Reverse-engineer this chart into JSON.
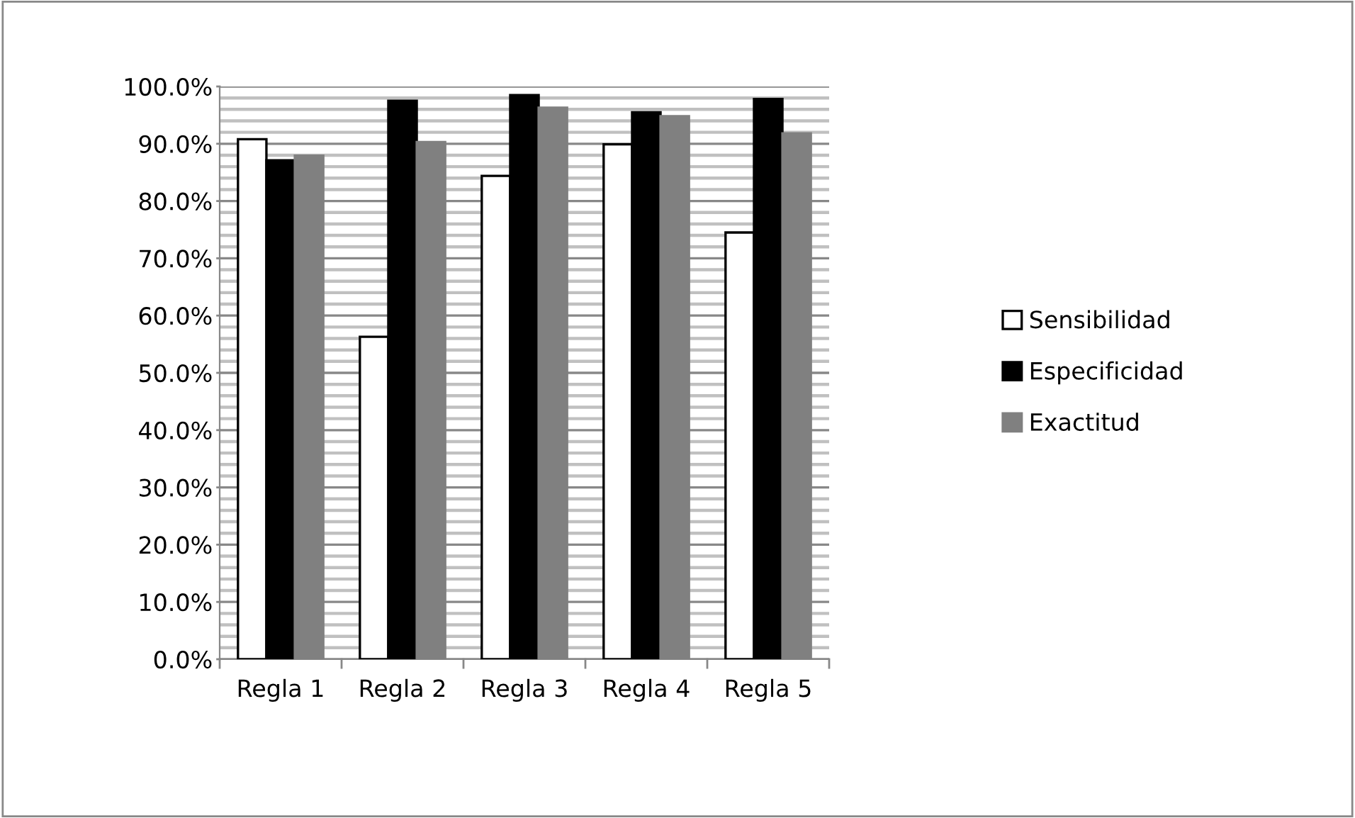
{
  "chart_data": {
    "type": "bar",
    "categories": [
      "Regla 1",
      "Regla 2",
      "Regla 3",
      "Regla 4",
      "Regla 5"
    ],
    "series": [
      {
        "name": "Sensibilidad",
        "color": "#ffffff",
        "values": [
          90.8,
          56.3,
          84.4,
          89.9,
          74.5
        ]
      },
      {
        "name": "Especificidad",
        "color": "#000000",
        "values": [
          87.1,
          97.5,
          98.5,
          95.5,
          97.8
        ]
      },
      {
        "name": "Exactitud",
        "color": "#808080",
        "values": [
          87.9,
          90.3,
          96.3,
          94.8,
          91.8
        ]
      }
    ],
    "ylim": [
      0,
      100
    ],
    "yticks": [
      {
        "value": 0,
        "label": "0.0%"
      },
      {
        "value": 2,
        "label": null
      },
      {
        "value": 4,
        "label": null
      },
      {
        "value": 6,
        "label": null
      },
      {
        "value": 8,
        "label": null
      },
      {
        "value": 10,
        "label": "10.0%"
      },
      {
        "value": 12,
        "label": null
      },
      {
        "value": 14,
        "label": null
      },
      {
        "value": 16,
        "label": null
      },
      {
        "value": 18,
        "label": null
      },
      {
        "value": 20,
        "label": "20.0%"
      },
      {
        "value": 22,
        "label": null
      },
      {
        "value": 24,
        "label": null
      },
      {
        "value": 26,
        "label": null
      },
      {
        "value": 28,
        "label": null
      },
      {
        "value": 30,
        "label": "30.0%"
      },
      {
        "value": 32,
        "label": null
      },
      {
        "value": 34,
        "label": null
      },
      {
        "value": 36,
        "label": null
      },
      {
        "value": 38,
        "label": null
      },
      {
        "value": 40,
        "label": "40.0%"
      },
      {
        "value": 42,
        "label": null
      },
      {
        "value": 44,
        "label": null
      },
      {
        "value": 46,
        "label": null
      },
      {
        "value": 48,
        "label": null
      },
      {
        "value": 50,
        "label": "50.0%"
      },
      {
        "value": 52,
        "label": null
      },
      {
        "value": 54,
        "label": null
      },
      {
        "value": 56,
        "label": null
      },
      {
        "value": 58,
        "label": null
      },
      {
        "value": 60,
        "label": "60.0%"
      },
      {
        "value": 62,
        "label": null
      },
      {
        "value": 64,
        "label": null
      },
      {
        "value": 66,
        "label": null
      },
      {
        "value": 68,
        "label": null
      },
      {
        "value": 70,
        "label": "70.0%"
      },
      {
        "value": 72,
        "label": null
      },
      {
        "value": 74,
        "label": null
      },
      {
        "value": 76,
        "label": null
      },
      {
        "value": 78,
        "label": null
      },
      {
        "value": 80,
        "label": "80.0%"
      },
      {
        "value": 82,
        "label": null
      },
      {
        "value": 84,
        "label": null
      },
      {
        "value": 86,
        "label": null
      },
      {
        "value": 88,
        "label": null
      },
      {
        "value": 90,
        "label": "90.0%"
      },
      {
        "value": 92,
        "label": null
      },
      {
        "value": 94,
        "label": null
      },
      {
        "value": 96,
        "label": null
      },
      {
        "value": 98,
        "label": null
      },
      {
        "value": 100,
        "label": "100.0%"
      }
    ],
    "grid": "y",
    "legend": "right"
  }
}
